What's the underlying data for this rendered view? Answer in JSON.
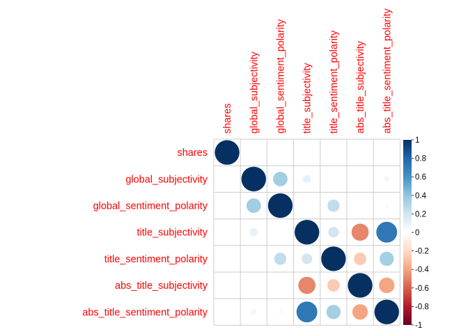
{
  "chart_data": {
    "type": "heatmap",
    "style": "corrplot-circle",
    "variables": [
      "shares",
      "global_subjectivity",
      "global_sentiment_polarity",
      "title_subjectivity",
      "title_sentiment_polarity",
      "abs_title_subjectivity",
      "abs_title_sentiment_polarity"
    ],
    "matrix": [
      [
        1.0,
        0.01,
        0.0,
        0.0,
        0.0,
        0.01,
        0.01
      ],
      [
        0.01,
        1.0,
        0.35,
        0.11,
        0.0,
        0.01,
        0.06
      ],
      [
        0.0,
        0.35,
        1.0,
        0.0,
        0.25,
        0.0,
        0.03
      ],
      [
        0.0,
        0.11,
        0.0,
        1.0,
        0.19,
        -0.49,
        0.72
      ],
      [
        0.0,
        0.0,
        0.25,
        0.19,
        1.0,
        -0.26,
        0.34
      ],
      [
        0.01,
        0.01,
        0.0,
        -0.49,
        -0.26,
        1.0,
        -0.4
      ],
      [
        0.01,
        0.06,
        0.03,
        0.72,
        0.34,
        -0.4,
        1.0
      ]
    ],
    "color_scale": {
      "stops": [
        "#67001f",
        "#b2182b",
        "#d6604d",
        "#f4a582",
        "#fddbc7",
        "#ffffff",
        "#d1e5f0",
        "#92c5de",
        "#4393c3",
        "#2166ac",
        "#053061"
      ],
      "range": [
        -1,
        1
      ]
    },
    "legend": {
      "ticks": [
        "1",
        "0.8",
        "0.6",
        "0.4",
        "0.2",
        "0",
        "-0.2",
        "-0.4",
        "-0.6",
        "-0.8",
        "-1"
      ],
      "position": "right"
    },
    "grid": true
  }
}
